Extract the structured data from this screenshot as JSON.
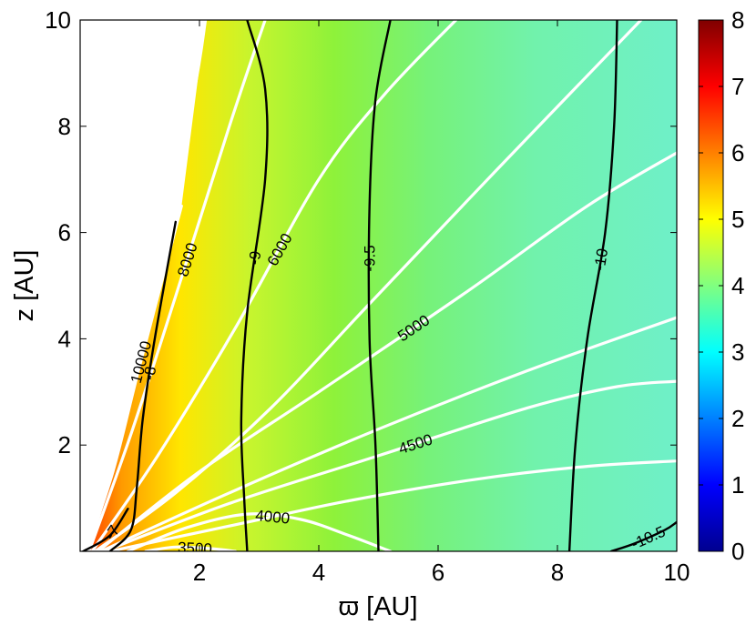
{
  "chart_data": {
    "type": "heatmap",
    "xlabel": "ϖ [AU]",
    "ylabel": "z [AU]",
    "xlim": [
      0,
      10
    ],
    "ylim": [
      0,
      10
    ],
    "x_ticks": [
      "2",
      "4",
      "6",
      "8",
      "10"
    ],
    "y_ticks": [
      "2",
      "4",
      "6",
      "8",
      "10"
    ],
    "grid": false,
    "colorbar": {
      "min": 0,
      "max": 8,
      "ticks": [
        "0",
        "1",
        "2",
        "3",
        "4",
        "5",
        "6",
        "7",
        "8"
      ],
      "colormap": "jet"
    },
    "white_contours": [
      {
        "label": "10000",
        "points": [
          [
            0.1,
            0.0
          ],
          [
            0.55,
            1.5
          ],
          [
            1.0,
            3.5
          ],
          [
            1.7,
            6.5
          ]
        ]
      },
      {
        "label": "8000",
        "points": [
          [
            0.15,
            0.0
          ],
          [
            0.85,
            2.2
          ],
          [
            1.6,
            4.8
          ],
          [
            2.5,
            8.0
          ],
          [
            3.1,
            10.0
          ]
        ]
      },
      {
        "label": "6000",
        "points": [
          [
            0.2,
            0.0
          ],
          [
            1.3,
            1.8
          ],
          [
            2.6,
            4.2
          ],
          [
            4.0,
            7.0
          ],
          [
            5.1,
            8.6
          ],
          [
            6.3,
            10.0
          ]
        ]
      },
      {
        "label": "5000",
        "points": [
          [
            0.3,
            0.0
          ],
          [
            2.0,
            1.5
          ],
          [
            4.0,
            3.0
          ],
          [
            6.5,
            4.9
          ],
          [
            8.5,
            6.5
          ],
          [
            10.0,
            7.5
          ]
        ]
      },
      {
        "label": "4500",
        "points": [
          [
            0.4,
            0.0
          ],
          [
            2.5,
            0.9
          ],
          [
            5.0,
            1.8
          ],
          [
            7.5,
            2.7
          ],
          [
            9.0,
            3.1
          ],
          [
            10.0,
            3.2
          ]
        ]
      },
      {
        "label": "4000",
        "points": [
          [
            0.8,
            0.0
          ],
          [
            1.8,
            0.45
          ],
          [
            2.8,
            0.7
          ],
          [
            3.7,
            0.6
          ],
          [
            4.5,
            0.3
          ],
          [
            5.2,
            0.0
          ]
        ]
      },
      {
        "label": "3500",
        "points": [
          [
            1.1,
            0.0
          ],
          [
            1.6,
            0.08
          ],
          [
            2.2,
            0.05
          ],
          [
            2.6,
            0.0
          ]
        ]
      },
      {
        "label": "",
        "points": [
          [
            0.12,
            0.0
          ],
          [
            0.4,
            1.0
          ],
          [
            0.7,
            2.5
          ],
          [
            1.3,
            5.5
          ],
          [
            1.9,
            8.6
          ],
          [
            2.1,
            10.0
          ]
        ]
      },
      {
        "label": "",
        "points": [
          [
            0.25,
            0.0
          ],
          [
            1.6,
            1.1
          ],
          [
            3.2,
            2.7
          ],
          [
            4.8,
            4.6
          ],
          [
            7.0,
            7.2
          ],
          [
            9.4,
            10.0
          ]
        ]
      },
      {
        "label": "",
        "points": [
          [
            0.35,
            0.0
          ],
          [
            2.5,
            1.1
          ],
          [
            5.0,
            2.3
          ],
          [
            7.5,
            3.4
          ],
          [
            10.0,
            4.4
          ]
        ]
      },
      {
        "label": "",
        "points": [
          [
            0.5,
            0.0
          ],
          [
            2.6,
            0.5
          ],
          [
            4.5,
            0.95
          ],
          [
            6.6,
            1.35
          ],
          [
            8.5,
            1.6
          ],
          [
            10.0,
            1.7
          ]
        ]
      }
    ],
    "black_contours": [
      {
        "label": "-7",
        "points": [
          [
            0.05,
            0.0
          ],
          [
            0.5,
            0.3
          ],
          [
            0.8,
            0.8
          ]
        ]
      },
      {
        "label": "-8",
        "points": [
          [
            0.5,
            0.0
          ],
          [
            0.85,
            0.4
          ],
          [
            0.95,
            1.2
          ],
          [
            1.05,
            2.5
          ],
          [
            1.25,
            4.0
          ],
          [
            1.6,
            6.2
          ]
        ]
      },
      {
        "label": "-9",
        "points": [
          [
            2.8,
            0.0
          ],
          [
            2.75,
            1.0
          ],
          [
            2.7,
            2.5
          ],
          [
            2.8,
            4.5
          ],
          [
            3.1,
            7.0
          ],
          [
            3.1,
            8.7
          ],
          [
            2.8,
            10.0
          ]
        ]
      },
      {
        "label": "-9.5",
        "points": [
          [
            5.0,
            0.0
          ],
          [
            4.95,
            2.0
          ],
          [
            4.85,
            4.0
          ],
          [
            4.85,
            6.5
          ],
          [
            4.95,
            8.5
          ],
          [
            5.2,
            10.0
          ]
        ]
      },
      {
        "label": "-10",
        "points": [
          [
            8.2,
            0.0
          ],
          [
            8.3,
            2.0
          ],
          [
            8.5,
            4.0
          ],
          [
            8.8,
            6.0
          ],
          [
            8.95,
            8.0
          ],
          [
            9.0,
            10.0
          ]
        ]
      },
      {
        "label": "-10.5",
        "points": [
          [
            8.9,
            0.0
          ],
          [
            9.3,
            0.15
          ],
          [
            9.8,
            0.4
          ],
          [
            10.0,
            0.55
          ]
        ]
      }
    ]
  }
}
